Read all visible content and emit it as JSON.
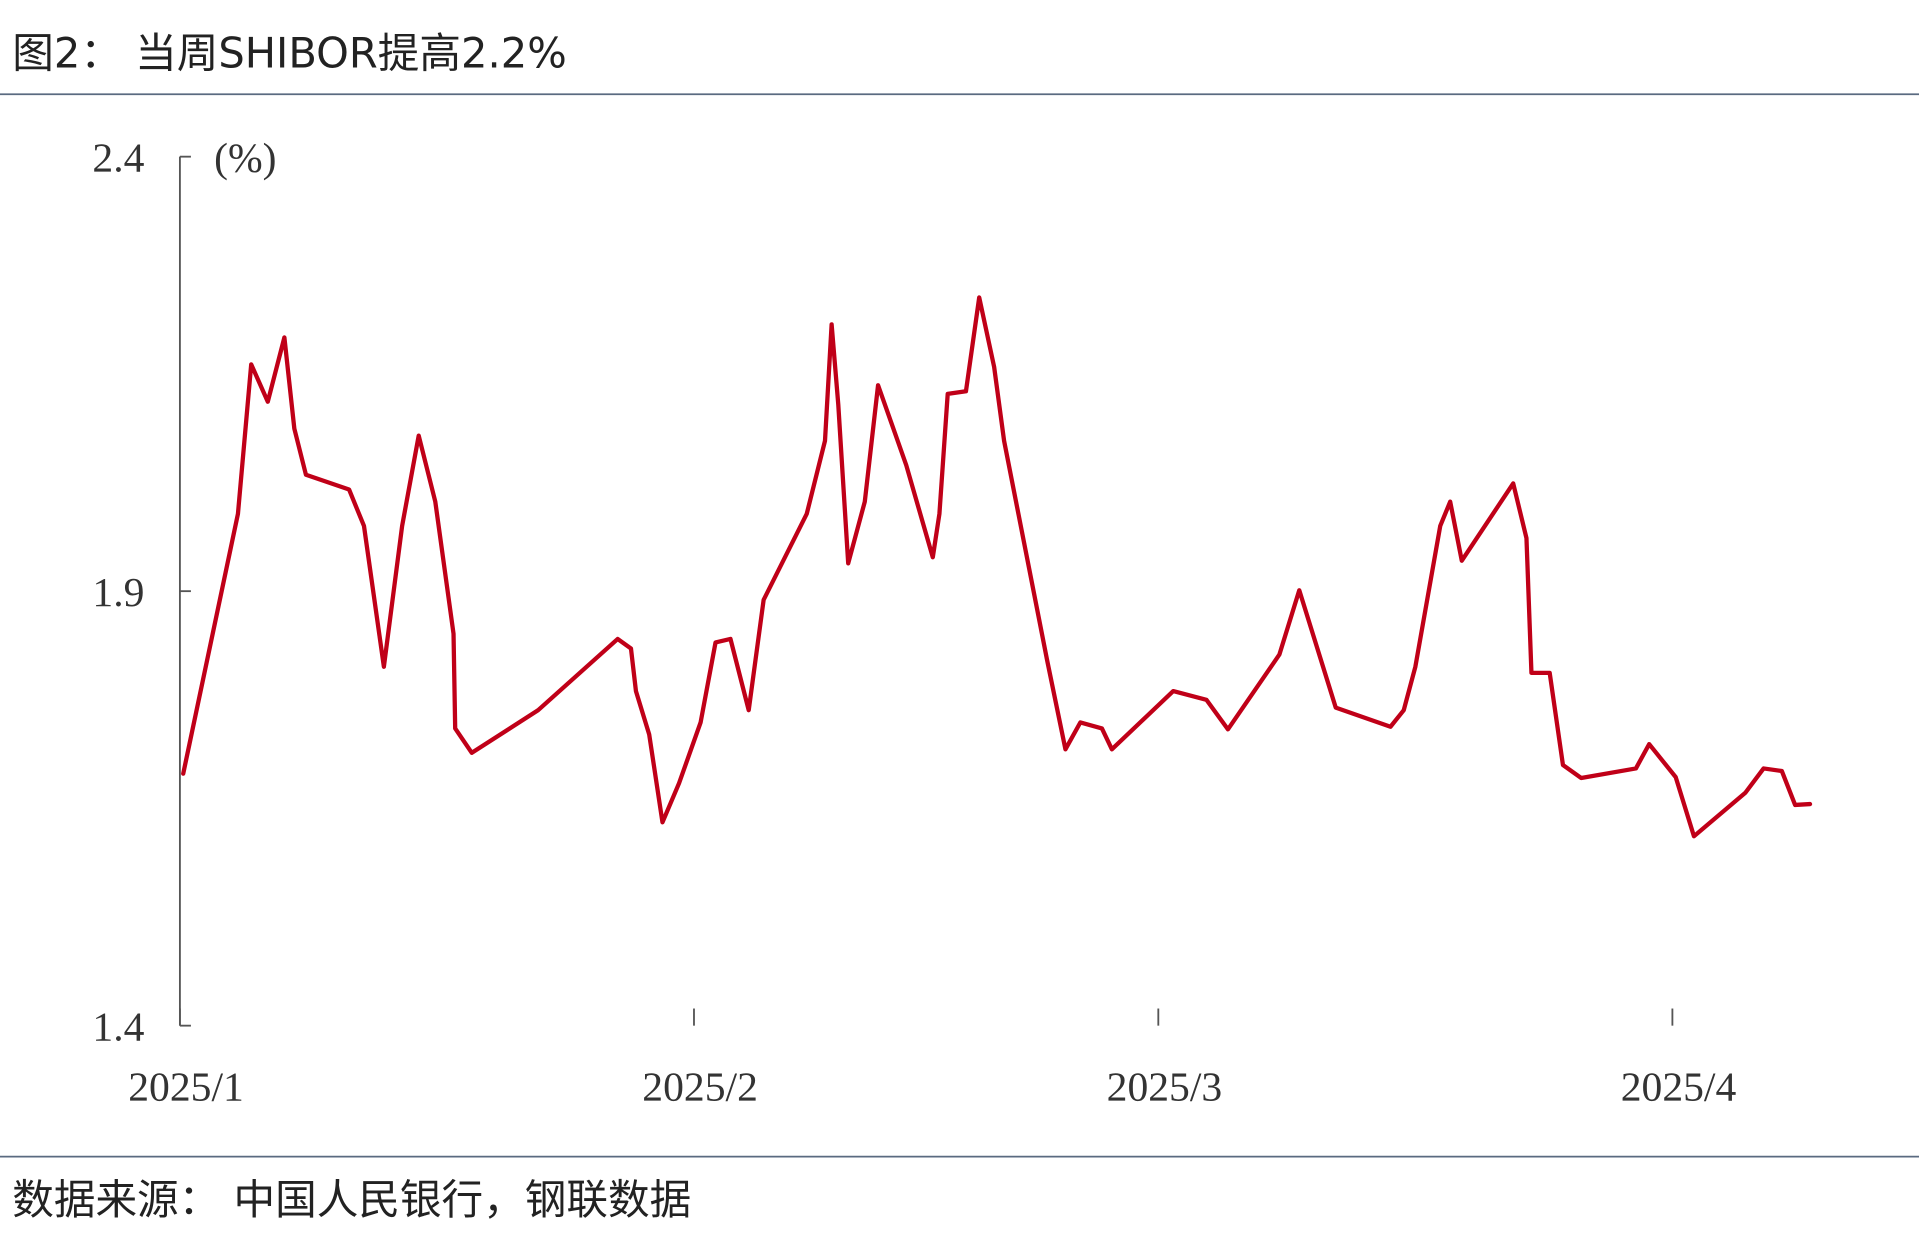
{
  "chart_data": {
    "type": "line",
    "title": "图2： 当周SHIBOR提高2.2%",
    "y_label": "(%)",
    "source": "数据来源：  中国人民银行，钢联数据",
    "xlim": [
      0,
      100
    ],
    "xticks": [
      {
        "value": 0,
        "label": "2025/1"
      },
      {
        "value": 31,
        "label": "2025/2"
      },
      {
        "value": 59,
        "label": "2025/3"
      },
      {
        "value": 90,
        "label": "2025/4"
      }
    ],
    "ylim": [
      1.4,
      2.4
    ],
    "yticks": [
      1.4,
      1.9,
      2.4
    ],
    "series": [
      {
        "name": "SHIBOR",
        "color": "#c00018",
        "x": [
          0.2,
          3.5,
          4.3,
          5.3,
          6.3,
          6.9,
          7.6,
          10.2,
          11.1,
          12.3,
          13.4,
          14.4,
          15.4,
          16.5,
          16.6,
          17.6,
          21.6,
          26.4,
          27.2,
          27.5,
          28.3,
          29.1,
          30.1,
          31.4,
          32.3,
          33.2,
          34.3,
          35.2,
          37.8,
          38.9,
          39.3,
          39.7,
          40.3,
          41.3,
          42.1,
          43.8,
          45.4,
          45.8,
          46.3,
          47.4,
          48.2,
          49.1,
          49.7,
          52.3,
          53.4,
          54.3,
          55.6,
          56.2,
          59.9,
          61.9,
          63.2,
          66.3,
          67.5,
          69.7,
          73.0,
          73.8,
          74.5,
          76.0,
          76.6,
          77.3,
          80.4,
          81.2,
          81.5,
          82.6,
          83.4,
          84.5,
          87.8,
          88.6,
          90.2,
          91.3,
          94.4,
          95.5,
          96.6,
          97.4,
          98.3
        ],
        "values": [
          1.69,
          1.989,
          2.161,
          2.118,
          2.192,
          2.087,
          2.034,
          2.017,
          1.975,
          1.813,
          1.975,
          2.079,
          2.003,
          1.851,
          1.742,
          1.714,
          1.763,
          1.845,
          1.834,
          1.785,
          1.735,
          1.634,
          1.679,
          1.749,
          1.841,
          1.845,
          1.763,
          1.89,
          1.989,
          2.073,
          2.207,
          2.115,
          1.932,
          2.003,
          2.137,
          2.045,
          1.939,
          1.989,
          2.127,
          2.13,
          2.238,
          2.158,
          2.073,
          1.82,
          1.718,
          1.749,
          1.742,
          1.718,
          1.785,
          1.775,
          1.741,
          1.827,
          1.901,
          1.766,
          1.744,
          1.763,
          1.813,
          1.975,
          2.003,
          1.935,
          2.024,
          1.961,
          1.806,
          1.806,
          1.7,
          1.685,
          1.696,
          1.724,
          1.686,
          1.618,
          1.668,
          1.696,
          1.693,
          1.654,
          1.655
        ]
      }
    ]
  }
}
